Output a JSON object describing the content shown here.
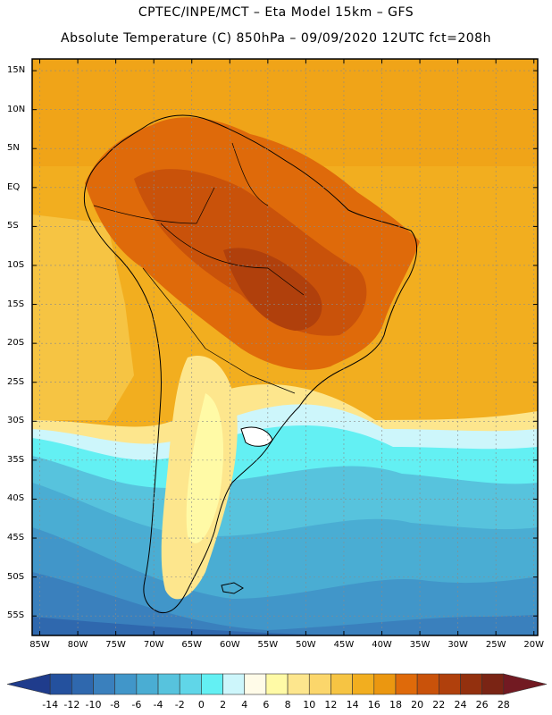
{
  "title": {
    "line1": "CPTEC/INPE/MCT –  Eta Model 15km – GFS",
    "line2": "Absolute Temperature (C) 850hPa – 09/09/2020 12UTC fct=208h"
  },
  "latitude_labels": [
    "15N",
    "10N",
    "5N",
    "EQ",
    "5S",
    "10S",
    "15S",
    "20S",
    "25S",
    "30S",
    "35S",
    "40S",
    "45S",
    "50S",
    "55S"
  ],
  "longitude_labels": [
    "85W",
    "80W",
    "75W",
    "70W",
    "65W",
    "60W",
    "55W",
    "50W",
    "45W",
    "40W",
    "35W",
    "30W",
    "25W",
    "20W"
  ],
  "colorbar": {
    "labels": [
      "-14",
      "-12",
      "-10",
      "-8",
      "-6",
      "-4",
      "-2",
      "0",
      "2",
      "4",
      "6",
      "8",
      "10",
      "12",
      "14",
      "16",
      "18",
      "20",
      "22",
      "24",
      "26",
      "28"
    ],
    "colors": [
      "#1f3c8c",
      "#24519e",
      "#2f68ae",
      "#3a80bd",
      "#4196c9",
      "#4aadd3",
      "#57c3dd",
      "#60d6e8",
      "#63f0f3",
      "#cdf6fb",
      "#fffbe8",
      "#fffaa6",
      "#fde68d",
      "#fbd66b",
      "#f6c443",
      "#f2ae1f",
      "#eb9710",
      "#df6a0a",
      "#c9520a",
      "#b0400c",
      "#93300e",
      "#7a2414",
      "#721a22"
    ]
  },
  "map": {
    "variable": "temperature at 850hPa",
    "units": "C",
    "lat_range": [
      -57.5,
      16.5
    ],
    "lon_range": [
      -86,
      -19.5
    ]
  }
}
